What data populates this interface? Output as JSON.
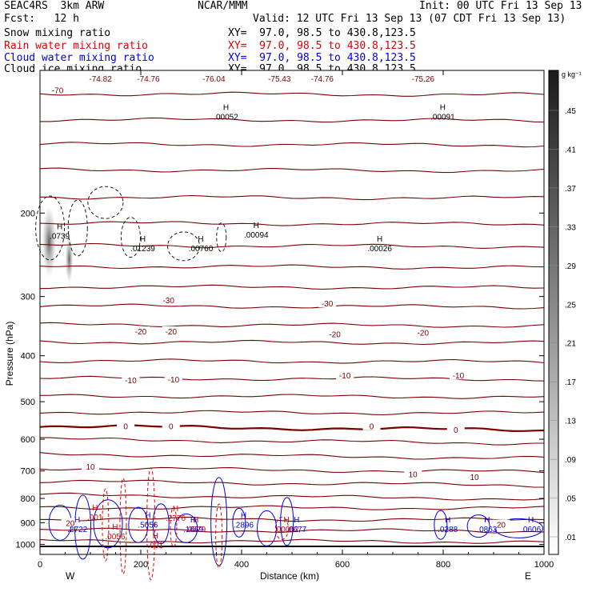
{
  "header": {
    "model": "SEAC4RS  3km ARW",
    "center": "NCAR/MMM",
    "init": "Init: 00 UTC Fri 13 Sep 13",
    "fcst": "Fcst:   12 h",
    "valid": "Valid: 12 UTC Fri 13 Sep 13 (07 CDT Fri 13 Sep 13)"
  },
  "legend": [
    {
      "name": "Snow mixing ratio",
      "xy": "XY=  97.0, 98.5 to 430.8,123.5",
      "color": "#000000"
    },
    {
      "name": "Rain water mixing ratio",
      "xy": "XY=  97.0, 98.5 to 430.8,123.5",
      "color": "#e00000"
    },
    {
      "name": "Cloud water mixing ratio",
      "xy": "XY=  97.0, 98.5 to 430.8,123.5",
      "color": "#0000e0"
    },
    {
      "name": "Cloud ice mixing ratio",
      "xy": "XY=  97.0, 98.5 to 430.8,123.5",
      "color": "#000000"
    }
  ],
  "colors": {
    "temperature_contour": "#7a0000",
    "rain": "#e00000",
    "cloud_water": "#0000e0",
    "snow": "#000000"
  },
  "chart_data": {
    "type": "cross-section",
    "xlabel": "Distance (km)",
    "ylabel": "Pressure (hPa)",
    "xlim": [
      0,
      1000
    ],
    "ylim": [
      1050,
      100
    ],
    "y_scale": "log",
    "x_ticks": [
      "0",
      "200",
      "400",
      "600",
      "800",
      "1000"
    ],
    "y_ticks": [
      "200",
      "300",
      "400",
      "500",
      "600",
      "700",
      "800",
      "900",
      "1000"
    ],
    "direction_labels": {
      "left": "W",
      "right": "E"
    },
    "colorbar": {
      "unit": "g kg⁻¹",
      "labels": [
        ".45",
        ".41",
        ".37",
        ".33",
        ".29",
        ".25",
        ".21",
        ".17",
        ".13",
        ".09",
        ".05",
        ".01"
      ]
    },
    "temperature_contour_labels": [
      {
        "text": "-70",
        "x": 35,
        "p": 110
      },
      {
        "text": "-74.82",
        "x": 120,
        "p": 104
      },
      {
        "text": "-74.76",
        "x": 215,
        "p": 104
      },
      {
        "text": "-76.04",
        "x": 345,
        "p": 104
      },
      {
        "text": "-75.43",
        "x": 475,
        "p": 104
      },
      {
        "text": "-74.76",
        "x": 560,
        "p": 104
      },
      {
        "text": "-75.26",
        "x": 760,
        "p": 104
      },
      {
        "text": "-30",
        "x": 255,
        "p": 305
      },
      {
        "text": "-30",
        "x": 570,
        "p": 310
      },
      {
        "text": "-20",
        "x": 200,
        "p": 355
      },
      {
        "text": "-20",
        "x": 260,
        "p": 355
      },
      {
        "text": "-20",
        "x": 585,
        "p": 360
      },
      {
        "text": "-20",
        "x": 760,
        "p": 357
      },
      {
        "text": "-10",
        "x": 180,
        "p": 450
      },
      {
        "text": "-10",
        "x": 265,
        "p": 448
      },
      {
        "text": "-10",
        "x": 605,
        "p": 440
      },
      {
        "text": "-10",
        "x": 830,
        "p": 440
      },
      {
        "text": "0",
        "x": 170,
        "p": 563
      },
      {
        "text": "0",
        "x": 260,
        "p": 563
      },
      {
        "text": "0",
        "x": 658,
        "p": 563
      },
      {
        "text": "0",
        "x": 825,
        "p": 573
      },
      {
        "text": "10",
        "x": 100,
        "p": 685
      },
      {
        "text": "10",
        "x": 740,
        "p": 710
      },
      {
        "text": "10",
        "x": 862,
        "p": 720
      },
      {
        "text": "20",
        "x": 60,
        "p": 900
      },
      {
        "text": "20",
        "x": 915,
        "p": 908
      }
    ],
    "temperature_contours_p_left": [
      112,
      127,
      143,
      162,
      185,
      210,
      234,
      259,
      286,
      314,
      344,
      374,
      410,
      446,
      486,
      526,
      563,
      600,
      645,
      690,
      736,
      786,
      835,
      884,
      933,
      983
    ],
    "maxima": [
      {
        "text": ".00052",
        "x": 350,
        "p": 125,
        "color": "#000000"
      },
      {
        "text": ".00091",
        "x": 780,
        "p": 125,
        "color": "#000000"
      },
      {
        "text": ".0739",
        "x": 20,
        "p": 223,
        "color": "#000000"
      },
      {
        "text": ".01239",
        "x": 185,
        "p": 237,
        "color": "#000000"
      },
      {
        "text": ".00760",
        "x": 300,
        "p": 237,
        "color": "#000000"
      },
      {
        "text": ".00094",
        "x": 410,
        "p": 222,
        "color": "#000000"
      },
      {
        "text": ".00026",
        "x": 655,
        "p": 237,
        "color": "#000000"
      },
      {
        "text": ".001",
        "x": 90,
        "p": 875,
        "color": "#e00000"
      },
      {
        "text": ".2776",
        "x": 250,
        "p": 878,
        "color": "#e00000"
      },
      {
        "text": ".0056",
        "x": 130,
        "p": 960,
        "color": "#e00000"
      },
      {
        "text": ".001",
        "x": 210,
        "p": 1003,
        "color": "#e00000"
      },
      {
        "text": ".0579",
        "x": 290,
        "p": 928,
        "color": "#e00000"
      },
      {
        "text": ".00062",
        "x": 470,
        "p": 928,
        "color": "#e00000"
      },
      {
        "text": ".2722",
        "x": 55,
        "p": 928,
        "color": "#0000e0"
      },
      {
        "text": ".5056",
        "x": 195,
        "p": 907,
        "color": "#0000e0"
      },
      {
        "text": ".1669",
        "x": 285,
        "p": 928,
        "color": "#0000e0"
      },
      {
        "text": ".2896",
        "x": 385,
        "p": 907,
        "color": "#0000e0"
      },
      {
        "text": ".0677",
        "x": 490,
        "p": 928,
        "color": "#0000e0"
      },
      {
        "text": ".0288",
        "x": 790,
        "p": 928,
        "color": "#0000e0"
      },
      {
        "text": ".0863",
        "x": 868,
        "p": 928,
        "color": "#0000e0"
      },
      {
        "text": ".0606",
        "x": 955,
        "p": 928,
        "color": "#0000e0"
      }
    ]
  }
}
